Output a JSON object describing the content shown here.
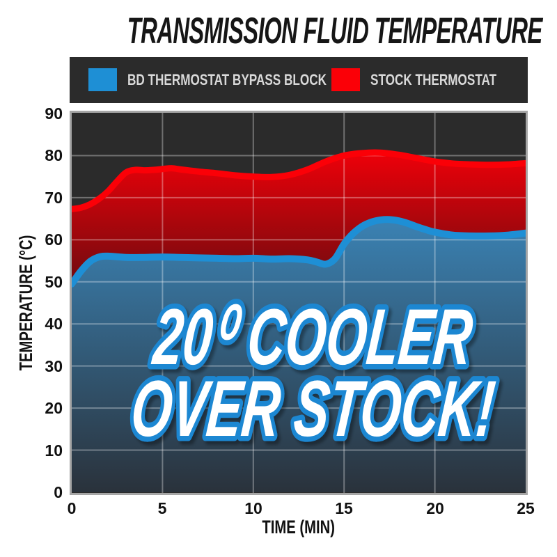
{
  "title": "TRANSMISSION FLUID TEMPERATURE",
  "legend": {
    "items": [
      {
        "label": "BD THERMOSTAT BYPASS BLOCK",
        "color": "#1e8fd5"
      },
      {
        "label": "STOCK THERMOSTAT",
        "color": "#fb0007"
      }
    ]
  },
  "overlay": {
    "line1": "20⁰ COOLER",
    "line2": "OVER STOCK!"
  },
  "colors": {
    "plot_background": "#2b2b2b",
    "legend_background": "#2b2b2b",
    "grid": "rgba(255,255,255,0.33)",
    "plot_border": "#a6a6a6",
    "axis_text": "#111111",
    "overlay_fill": "#ffffff",
    "overlay_outline": "#1d87d2"
  },
  "chart_data": {
    "type": "area",
    "title": "TRANSMISSION FLUID TEMPERATURE",
    "xlabel": "TIME (MIN)",
    "ylabel": "TEMPERATURE (°C)",
    "xlim": [
      0,
      25
    ],
    "ylim": [
      0,
      90
    ],
    "x_ticks": [
      0,
      5,
      10,
      15,
      20,
      25
    ],
    "y_ticks": [
      0,
      10,
      20,
      30,
      40,
      50,
      60,
      70,
      80,
      90
    ],
    "grid": true,
    "legend_position": "top",
    "annotation": "20⁰ COOLER OVER STOCK!",
    "series": [
      {
        "name": "BD THERMOSTAT BYPASS BLOCK",
        "line_color": "#1e8fd5",
        "fill_top": "#3b85b8",
        "fill_bottom": "#2a323b",
        "line_width": 10,
        "x": [
          0,
          0.5,
          1,
          1.5,
          2,
          3,
          4,
          5,
          6,
          7,
          8,
          9,
          10,
          11,
          12,
          13,
          13.5,
          14,
          14.5,
          15,
          15.5,
          16,
          16.5,
          17,
          17.5,
          18,
          18.5,
          19,
          19.5,
          20,
          21,
          22,
          23,
          24,
          25
        ],
        "values": [
          49.5,
          52.5,
          54.8,
          55.9,
          56.1,
          55.8,
          55.8,
          55.9,
          55.8,
          55.7,
          55.6,
          55.5,
          55.6,
          55.4,
          55.5,
          55.2,
          54.7,
          54.2,
          55.5,
          59.0,
          61.5,
          63.2,
          64.2,
          64.7,
          64.8,
          64.5,
          63.9,
          63.1,
          62.4,
          61.8,
          61.1,
          60.9,
          60.9,
          61.1,
          61.6
        ]
      },
      {
        "name": "STOCK THERMOSTAT",
        "line_color": "#fb0007",
        "fill_top": "#ef0009",
        "fill_bottom": "#5c0d10",
        "line_width": 9,
        "x": [
          0,
          0.5,
          1,
          1.5,
          2,
          2.5,
          3,
          3.5,
          4,
          4.5,
          5,
          5.5,
          6,
          7,
          8,
          9,
          10,
          11,
          12,
          13,
          14,
          15,
          16,
          17,
          18,
          19,
          20,
          21,
          22,
          23,
          24,
          25
        ],
        "values": [
          67.3,
          67.6,
          68.4,
          69.7,
          71.5,
          73.9,
          76.0,
          76.6,
          76.5,
          76.6,
          76.8,
          77.0,
          76.7,
          76.2,
          75.8,
          75.3,
          75.0,
          74.9,
          75.4,
          76.7,
          78.6,
          80.0,
          80.6,
          80.7,
          80.2,
          79.4,
          78.6,
          78.1,
          77.9,
          77.8,
          77.9,
          78.2
        ]
      }
    ]
  }
}
